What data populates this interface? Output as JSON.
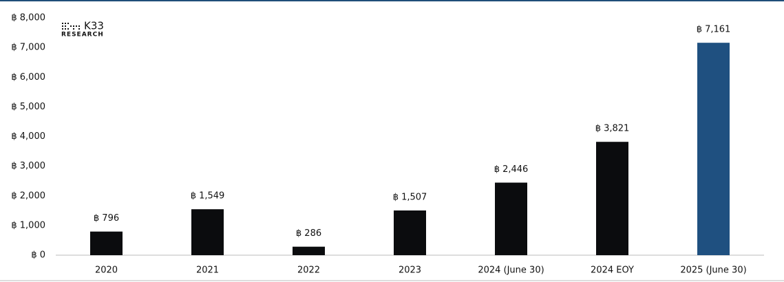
{
  "logo": {
    "name": "K33",
    "subtitle": "RESEARCH"
  },
  "chart_data": {
    "type": "bar",
    "categories": [
      "2020",
      "2021",
      "2022",
      "2023",
      "2024 (June 30)",
      "2024 EOY",
      "2025 (June 30)"
    ],
    "values": [
      796,
      1549,
      286,
      1507,
      2446,
      3821,
      7161
    ],
    "value_labels": [
      "฿ 796",
      "฿ 1,549",
      "฿ 286",
      "฿ 1,507",
      "฿ 2,446",
      "฿ 3,821",
      "฿ 7,161"
    ],
    "colors": [
      "#0b0c0e",
      "#0b0c0e",
      "#0b0c0e",
      "#0b0c0e",
      "#0b0c0e",
      "#0b0c0e",
      "#1f5080"
    ],
    "ylim": [
      0,
      8000
    ],
    "yticks": [
      {
        "value": 0,
        "label": "฿ 0"
      },
      {
        "value": 1000,
        "label": "฿ 1,000"
      },
      {
        "value": 2000,
        "label": "฿ 2,000"
      },
      {
        "value": 3000,
        "label": "฿ 3,000"
      },
      {
        "value": 4000,
        "label": "฿ 4,000"
      },
      {
        "value": 5000,
        "label": "฿ 5,000"
      },
      {
        "value": 6000,
        "label": "฿ 6,000"
      },
      {
        "value": 7000,
        "label": "฿ 7,000"
      },
      {
        "value": 8000,
        "label": "฿ 8,000"
      }
    ],
    "grid": false
  }
}
